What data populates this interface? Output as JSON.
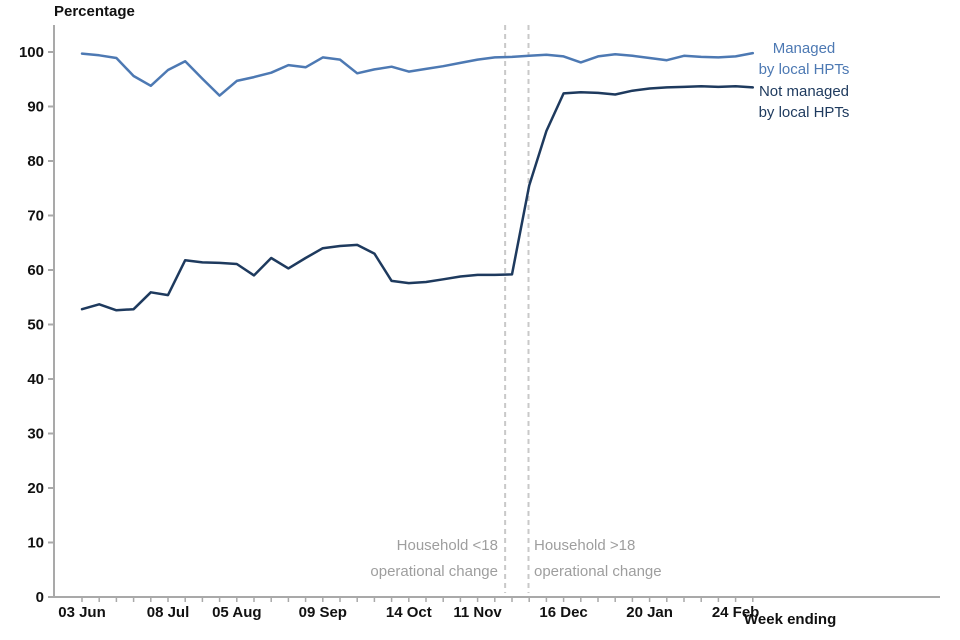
{
  "chart_data": {
    "type": "line",
    "y_axis_title": "Percentage",
    "x_axis_title": "Week ending",
    "ylim": [
      0,
      100
    ],
    "y_ticks": [
      0,
      10,
      20,
      30,
      40,
      50,
      60,
      70,
      80,
      90,
      100
    ],
    "x_unit": "week",
    "x_tick_labels": [
      {
        "index": 0,
        "label": "03 Jun"
      },
      {
        "index": 5,
        "label": "08 Jul"
      },
      {
        "index": 9,
        "label": "05 Aug"
      },
      {
        "index": 14,
        "label": "09 Sep"
      },
      {
        "index": 19,
        "label": "14 Oct"
      },
      {
        "index": 23,
        "label": "11 Nov"
      },
      {
        "index": 28,
        "label": "16 Dec"
      },
      {
        "index": 33,
        "label": "20 Jan"
      },
      {
        "index": 38,
        "label": "24 Feb"
      }
    ],
    "series": [
      {
        "id": "managed",
        "name": "Managed by local HPTs",
        "color": "#4d79b3",
        "values": [
          99.7,
          99.4,
          98.9,
          95.6,
          93.8,
          96.7,
          98.3,
          95.1,
          92.0,
          94.7,
          95.4,
          96.2,
          97.6,
          97.2,
          99.0,
          98.6,
          96.1,
          96.8,
          97.3,
          96.4,
          96.9,
          97.4,
          98.0,
          98.6,
          99.0,
          99.1,
          99.3,
          99.5,
          99.2,
          98.1,
          99.2,
          99.6,
          99.3,
          98.9,
          98.5,
          99.3,
          99.1,
          99.0,
          99.2,
          99.8
        ]
      },
      {
        "id": "not-managed",
        "name": "Not managed by local HPTs",
        "color": "#1e3a5e",
        "values": [
          52.8,
          53.7,
          52.6,
          52.8,
          55.9,
          55.4,
          61.8,
          61.4,
          61.3,
          61.1,
          59.0,
          62.2,
          60.3,
          62.2,
          64.0,
          64.4,
          64.6,
          63.0,
          58.0,
          57.6,
          57.8,
          58.3,
          58.8,
          59.1,
          59.1,
          59.2,
          75.5,
          85.5,
          92.4,
          92.6,
          92.5,
          92.2,
          92.9,
          93.3,
          93.5,
          93.6,
          93.7,
          93.6,
          93.7,
          93.5
        ]
      }
    ],
    "legend": [
      {
        "label": "Managed\nby local HPTs",
        "color": "#4d79b3"
      },
      {
        "label": "Not managed\nby local HPTs",
        "color": "#1e3a5e"
      }
    ],
    "event_lines": [
      {
        "x_index": 24.6,
        "label": "Household <18\noperational change",
        "align": "right"
      },
      {
        "x_index": 25.96,
        "label": "Household >18\noperational change",
        "align": "left"
      }
    ],
    "colors": {
      "axis": "#a9a9a9",
      "tick_label": "#111111",
      "event_line": "#c9c9c9",
      "annotation": "#9e9e9e"
    },
    "legend_position": "right",
    "grid": false
  }
}
